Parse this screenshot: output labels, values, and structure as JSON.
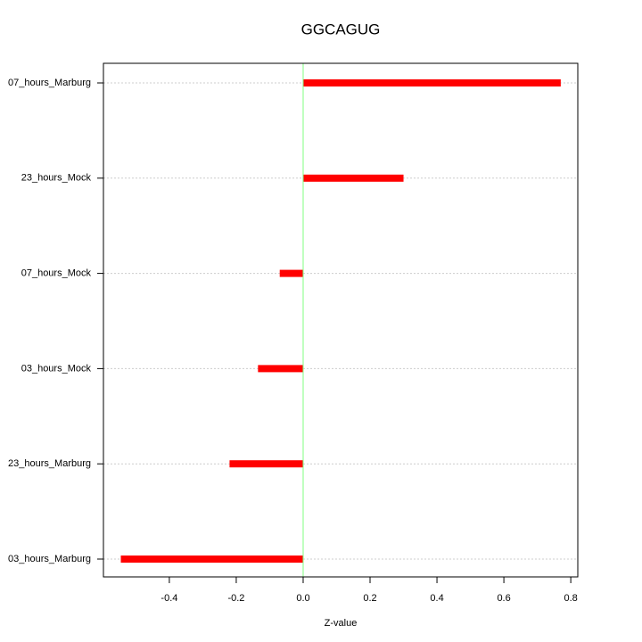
{
  "chart_data": {
    "type": "hbar",
    "title": "GGCAGUG",
    "xlabel": "Z-value",
    "categories": [
      "07_hours_Marburg",
      "23_hours_Mock",
      "07_hours_Mock",
      "03_hours_Mock",
      "23_hours_Marburg",
      "03_hours_Marburg"
    ],
    "values": [
      0.77,
      0.3,
      -0.07,
      -0.135,
      -0.22,
      -0.545
    ],
    "color": "#ff0000",
    "zero_line_color": "#80ff80",
    "xlim": [
      -0.597,
      0.821
    ],
    "xticks": [
      -0.4,
      -0.2,
      {
        "value": 0,
        "label": "0.0"
      },
      0.2,
      0.4,
      0.6,
      0.8
    ],
    "grid": true
  }
}
